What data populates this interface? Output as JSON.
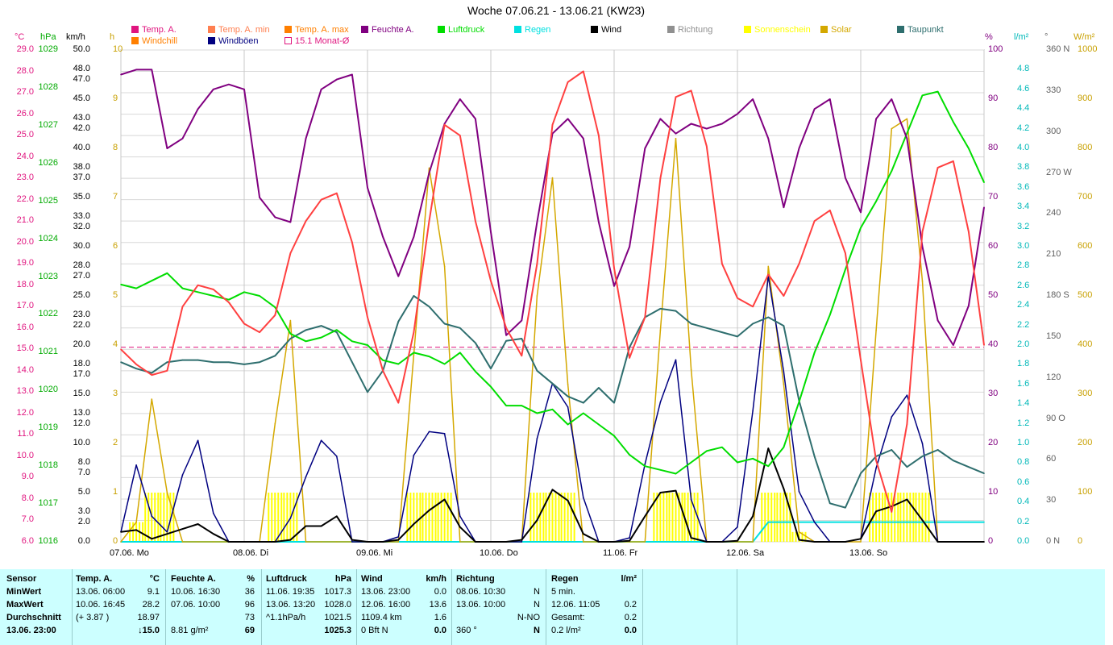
{
  "title": "Woche 07.06.21 - 13.06.21 (KW23)",
  "legend": [
    {
      "label": "Temp. A.",
      "color": "#e0157f"
    },
    {
      "label": "Temp. A. min",
      "color": "#ff7f50"
    },
    {
      "label": "Temp. A. max",
      "color": "#ff7f00"
    },
    {
      "label": "Feuchte A.",
      "color": "#800080"
    },
    {
      "label": "Luftdruck",
      "color": "#00dd00"
    },
    {
      "label": "Regen",
      "color": "#00e0e0"
    },
    {
      "label": "Wind",
      "color": "#000000"
    },
    {
      "label": "Richtung",
      "color": "#909090"
    },
    {
      "label": "Sonnenschein",
      "color": "#ffff00"
    },
    {
      "label": "Solar",
      "color": "#d4a800"
    },
    {
      "label": "Taupunkt",
      "color": "#2e6e6e"
    },
    {
      "label": "Windchill",
      "color": "#ff7f00"
    },
    {
      "label": "Windböen",
      "color": "#000080"
    },
    {
      "label": "15.1 Monat-Ø",
      "color": "#e0157f"
    }
  ],
  "axis_units": {
    "temp": "°C",
    "press": "hPa",
    "wind": "km/h",
    "sun": "h",
    "hum": "%",
    "rain": "l/m²",
    "dir": "°",
    "solar": "W/m²"
  },
  "axes": {
    "temp": [
      "29.0",
      "28.0",
      "27.0",
      "26.0",
      "25.0",
      "24.0",
      "23.0",
      "22.0",
      "21.0",
      "20.0",
      "19.0",
      "18.0",
      "17.0",
      "16.0",
      "15.0",
      "14.0",
      "13.0",
      "12.0",
      "11.0",
      "10.0",
      "9.0",
      "8.0",
      "7.0",
      "6.0"
    ],
    "press": [
      "1029",
      "1028",
      "1027",
      "1026",
      "1025",
      "1024",
      "1023",
      "1022",
      "1021",
      "1020",
      "1019",
      "1018",
      "1017",
      "1016"
    ],
    "wind": [
      {
        "v": 50.0,
        "t": "50.0"
      },
      {
        "v": 48.0,
        "t": "48.0"
      },
      {
        "v": 47.0,
        "t": "47.0"
      },
      {
        "v": 45.0,
        "t": "45.0"
      },
      {
        "v": 43.0,
        "t": "43.0"
      },
      {
        "v": 42.0,
        "t": "42.0"
      },
      {
        "v": 40.0,
        "t": "40.0"
      },
      {
        "v": 38.0,
        "t": "38.0"
      },
      {
        "v": 37.0,
        "t": "37.0"
      },
      {
        "v": 35.0,
        "t": "35.0"
      },
      {
        "v": 33.0,
        "t": "33.0"
      },
      {
        "v": 32.0,
        "t": "32.0"
      },
      {
        "v": 30.0,
        "t": "30.0"
      },
      {
        "v": 28.0,
        "t": "28.0"
      },
      {
        "v": 27.0,
        "t": "27.0"
      },
      {
        "v": 25.0,
        "t": "25.0"
      },
      {
        "v": 23.0,
        "t": "23.0"
      },
      {
        "v": 22.0,
        "t": "22.0"
      },
      {
        "v": 20.0,
        "t": "20.0"
      },
      {
        "v": 18.0,
        "t": "18.0"
      },
      {
        "v": 17.0,
        "t": "17.0"
      },
      {
        "v": 15.0,
        "t": "15.0"
      },
      {
        "v": 13.0,
        "t": "13.0"
      },
      {
        "v": 12.0,
        "t": "12.0"
      },
      {
        "v": 10.0,
        "t": "10.0"
      },
      {
        "v": 8.0,
        "t": "8.0"
      },
      {
        "v": 7.0,
        "t": "7.0"
      },
      {
        "v": 5.0,
        "t": "5.0"
      },
      {
        "v": 3.0,
        "t": "3.0"
      },
      {
        "v": 2.0,
        "t": "2.0"
      },
      {
        "v": 0.0,
        "t": "0.0"
      }
    ],
    "sun": [
      "10",
      "9",
      "8",
      "7",
      "6",
      "5",
      "4",
      "3",
      "2",
      "1",
      "0"
    ],
    "hum": [
      "100",
      "90",
      "80",
      "70",
      "60",
      "50",
      "40",
      "30",
      "20",
      "10",
      "0"
    ],
    "rain": [
      "4.8",
      "4.6",
      "4.4",
      "4.2",
      "4.0",
      "3.8",
      "3.6",
      "3.4",
      "3.2",
      "3.0",
      "2.8",
      "2.6",
      "2.4",
      "2.2",
      "2.0",
      "1.8",
      "1.6",
      "1.4",
      "1.2",
      "1.0",
      "0.8",
      "0.6",
      "0.4",
      "0.2",
      "0.0"
    ],
    "dir": [
      {
        "v": 360,
        "t": "360 N"
      },
      {
        "v": 330,
        "t": "330"
      },
      {
        "v": 300,
        "t": "300"
      },
      {
        "v": 270,
        "t": "270 W"
      },
      {
        "v": 240,
        "t": "240"
      },
      {
        "v": 210,
        "t": "210"
      },
      {
        "v": 180,
        "t": "180 S"
      },
      {
        "v": 150,
        "t": "150"
      },
      {
        "v": 120,
        "t": "120"
      },
      {
        "v": 90,
        "t": "90 O"
      },
      {
        "v": 60,
        "t": "60"
      },
      {
        "v": 30,
        "t": "30"
      },
      {
        "v": 0,
        "t": "0 N"
      }
    ],
    "solar": [
      "1000",
      "900",
      "800",
      "700",
      "600",
      "500",
      "400",
      "300",
      "200",
      "100",
      "0"
    ]
  },
  "days": [
    "07.06. Mo",
    "08.06. Di",
    "09.06. Mi",
    "10.06. Do",
    "11.06. Fr",
    "12.06. Sa",
    "13.06. So"
  ],
  "chart_data": {
    "type": "line",
    "title": "Woche 07.06.21 - 13.06.21 (KW23)",
    "x_hours_from_start": [
      0,
      3,
      6,
      9,
      12,
      15,
      18,
      21,
      24,
      27,
      30,
      33,
      36,
      39,
      42,
      45,
      48,
      51,
      54,
      57,
      60,
      63,
      66,
      69,
      72,
      75,
      78,
      81,
      84,
      87,
      90,
      93,
      96,
      99,
      102,
      105,
      108,
      111,
      114,
      117,
      120,
      123,
      126,
      129,
      132,
      135,
      138,
      141,
      144,
      147,
      150,
      153,
      156,
      159,
      162,
      165,
      168
    ],
    "ylim_temp": [
      6,
      29
    ],
    "ylim_press": [
      1016,
      1029
    ],
    "ylim_hum": [
      0,
      100
    ],
    "ylim_wind": [
      0,
      50
    ],
    "ylim_solar": [
      0,
      1000
    ],
    "ylim_rain": [
      0,
      5
    ],
    "month_avg_temp": 15.1,
    "series": [
      {
        "name": "Temp. A.",
        "axis": "temp",
        "color": "#ff4040",
        "values": [
          15.0,
          14.3,
          13.8,
          14.0,
          17.0,
          18.0,
          17.8,
          17.2,
          16.2,
          15.8,
          16.6,
          19.5,
          21.0,
          22.0,
          22.3,
          20.0,
          16.5,
          14.0,
          12.5,
          15.8,
          21.0,
          25.5,
          25.0,
          21.0,
          18.2,
          16.0,
          14.7,
          19.0,
          25.5,
          27.5,
          28.0,
          25.0,
          18.8,
          14.6,
          16.5,
          23.0,
          26.8,
          27.1,
          24.5,
          19.0,
          17.4,
          17.0,
          18.5,
          17.5,
          19.0,
          21.0,
          21.5,
          19.5,
          14.5,
          9.8,
          7.4,
          11.5,
          20.5,
          23.5,
          23.8,
          20.5,
          15.2
        ]
      },
      {
        "name": "Feuchte A.",
        "axis": "hum",
        "color": "#800080",
        "values": [
          95,
          96,
          96,
          80,
          82,
          88,
          92,
          93,
          92,
          70,
          66,
          65,
          82,
          92,
          94,
          95,
          72,
          62,
          54,
          62,
          75,
          85,
          90,
          86,
          63,
          42,
          45,
          65,
          83,
          86,
          82,
          65,
          52,
          60,
          80,
          86,
          83,
          85,
          84,
          85,
          87,
          90,
          82,
          68,
          80,
          88,
          90,
          74,
          67,
          86,
          90,
          82,
          60,
          45,
          40,
          48,
          68
        ]
      },
      {
        "name": "Luftdruck",
        "axis": "press",
        "color": "#00dd00",
        "values": [
          1022.8,
          1022.7,
          1022.9,
          1023.1,
          1022.7,
          1022.6,
          1022.5,
          1022.4,
          1022.6,
          1022.5,
          1022.2,
          1021.5,
          1021.3,
          1021.4,
          1021.6,
          1021.3,
          1021.2,
          1020.8,
          1020.7,
          1021.0,
          1020.9,
          1020.7,
          1021.0,
          1020.5,
          1020.1,
          1019.6,
          1019.6,
          1019.4,
          1019.5,
          1019.1,
          1019.4,
          1019.1,
          1018.8,
          1018.3,
          1018.0,
          1017.9,
          1017.8,
          1018.1,
          1018.4,
          1018.5,
          1018.1,
          1018.2,
          1018.0,
          1018.5,
          1019.7,
          1021.0,
          1022.0,
          1023.2,
          1024.3,
          1025.0,
          1025.8,
          1026.8,
          1027.8,
          1027.9,
          1027.1,
          1026.4,
          1025.5
        ]
      },
      {
        "name": "Taupunkt",
        "axis": "temp",
        "color": "#2e6e6e",
        "values": [
          14.4,
          14.1,
          13.9,
          14.4,
          14.5,
          14.5,
          14.4,
          14.4,
          14.3,
          14.4,
          14.7,
          15.5,
          15.9,
          16.1,
          15.8,
          14.4,
          13.0,
          14.0,
          16.3,
          17.5,
          17.0,
          16.2,
          16.0,
          15.3,
          14.1,
          15.4,
          15.5,
          14.0,
          13.4,
          12.8,
          12.5,
          13.2,
          12.5,
          15.1,
          16.5,
          16.9,
          16.8,
          16.2,
          16.0,
          15.8,
          15.6,
          16.2,
          16.5,
          16.1,
          12.6,
          10.0,
          7.8,
          7.6,
          9.2,
          10.0,
          10.3,
          9.5,
          10.0,
          10.3,
          9.8,
          9.5,
          9.2
        ]
      },
      {
        "name": "Wind",
        "axis": "wind",
        "color": "#000000",
        "values": [
          1.0,
          1.2,
          0.3,
          0.8,
          1.3,
          1.8,
          0.8,
          0.0,
          0.0,
          0.0,
          0.0,
          0.2,
          1.6,
          1.6,
          2.6,
          0.2,
          0.0,
          0.0,
          0.2,
          1.8,
          3.2,
          4.3,
          1.5,
          0.0,
          0.0,
          0.0,
          0.2,
          2.2,
          5.3,
          4.2,
          0.8,
          0.0,
          0.0,
          0.1,
          2.6,
          5.0,
          5.2,
          0.4,
          0.0,
          0.0,
          0.1,
          2.6,
          9.5,
          5.4,
          0.2,
          0.0,
          0.0,
          0.0,
          0.3,
          3.1,
          3.6,
          4.3,
          2.2,
          0.0,
          0.0,
          0.0,
          0.0
        ]
      },
      {
        "name": "Windböen",
        "axis": "wind",
        "color": "#000080",
        "values": [
          1.0,
          7.8,
          2.6,
          1.0,
          6.8,
          10.3,
          2.9,
          0.0,
          0.0,
          0.0,
          0.0,
          2.4,
          6.6,
          10.3,
          8.7,
          0.0,
          0.0,
          0.0,
          0.5,
          8.8,
          11.2,
          11.0,
          2.6,
          0.0,
          0.0,
          0.0,
          0.0,
          10.5,
          16.1,
          13.7,
          4.5,
          0.0,
          0.0,
          0.4,
          7.9,
          14.2,
          18.5,
          4.3,
          0.0,
          0.0,
          1.5,
          13.3,
          27.0,
          17.3,
          5.1,
          2.0,
          0.0,
          0.0,
          0.3,
          7.5,
          12.7,
          14.9,
          10.0,
          0.0,
          0.0,
          0.0,
          0.0
        ]
      },
      {
        "name": "Solar",
        "axis": "solar",
        "color": "#d4a800",
        "values": [
          0,
          40,
          290,
          100,
          0,
          0,
          0,
          0,
          0,
          0,
          240,
          450,
          0,
          0,
          0,
          0,
          0,
          0,
          0,
          380,
          760,
          560,
          0,
          0,
          0,
          0,
          0,
          500,
          740,
          320,
          0,
          0,
          0,
          0,
          0,
          430,
          820,
          350,
          0,
          0,
          0,
          0,
          560,
          320,
          20,
          0,
          0,
          0,
          0,
          430,
          840,
          860,
          530,
          0,
          0,
          0,
          0
        ]
      },
      {
        "name": "Regen",
        "axis": "rain",
        "color": "#00e0e0",
        "values": [
          0,
          0,
          0,
          0,
          0,
          0,
          0,
          0,
          0,
          0,
          0,
          0,
          0,
          0,
          0,
          0,
          0,
          0,
          0,
          0,
          0,
          0,
          0,
          0,
          0,
          0,
          0,
          0,
          0,
          0,
          0,
          0,
          0,
          0,
          0,
          0,
          0,
          0,
          0,
          0,
          0,
          0,
          0.2,
          0.2,
          0.2,
          0.2,
          0.2,
          0.2,
          0.2,
          0.2,
          0.2,
          0.2,
          0.2,
          0.2,
          0.2,
          0.2,
          0.2
        ]
      }
    ]
  },
  "stats": {
    "sensor": {
      "header": "Sensor",
      "min": "MinWert",
      "max": "MaxWert",
      "avg": "Durchschnitt",
      "now": "13.06. 23:00"
    },
    "temp": {
      "header": "Temp. A.",
      "unit": "°C",
      "min_time": "13.06.  06:00",
      "min_val": "9.1",
      "max_time": "10.06.  16:45",
      "max_val": "28.2",
      "trend": "(+ 3.87 )",
      "avg": "18.97",
      "now": "↓15.0"
    },
    "hum": {
      "header": "Feuchte A.",
      "unit": "%",
      "min_time": "10.06.  16:30",
      "min_val": "36",
      "max_time": "07.06.  10:00",
      "max_val": "96",
      "avg": "73",
      "abs": "8.81 g/m²",
      "now": "69"
    },
    "press": {
      "header": "Luftdruck",
      "unit": "hPa",
      "min_time": "11.06.  19:35",
      "min_val": "1017.3",
      "max_time": "13.06.  13:20",
      "max_val": "1028.0",
      "trend": "^1.1hPa/h",
      "avg": "1021.5",
      "now": "1025.3"
    },
    "wind": {
      "header": "Wind",
      "unit": "km/h",
      "min_time": "13.06.  23:00",
      "min_val": "0.0",
      "max_time": "12.06.  16:00",
      "max_val": "13.6",
      "dist": "1109.4 km",
      "avg": "1.6",
      "bft": "0 Bft N",
      "now": "0.0"
    },
    "dir": {
      "header": "Richtung",
      "min_time": "08.06.  10:30",
      "min_val": "N",
      "max_time": "13.06.  10:00",
      "max_val": "N",
      "avg": "N-NO",
      "deg": "360 °",
      "now": "N"
    },
    "rain": {
      "header": "Regen",
      "unit": "l/m²",
      "r1": "5 min.",
      "max_time": "12.06.  11:05",
      "max_val": "0.2",
      "total_label": "Gesamt:",
      "total": "0.2",
      "rate": "0.2 l/m²",
      "now": "0.0"
    }
  }
}
